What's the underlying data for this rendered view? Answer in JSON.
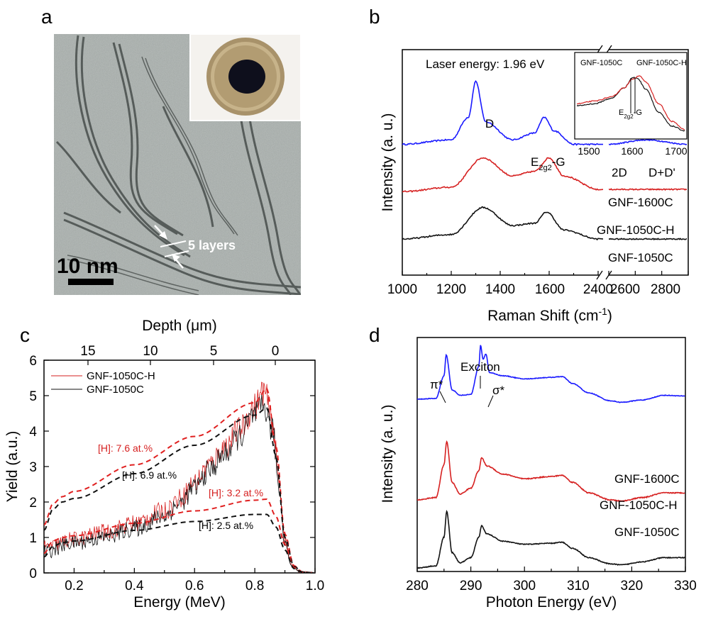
{
  "panels": {
    "a": {
      "label": "a",
      "scale_bar": "10 nm",
      "annotation": "5 layers"
    },
    "b": {
      "label": "b",
      "laser_energy": "Laser energy: 1.96 eV",
      "ylabel": "Intensity (a. u.)",
      "xlabel": "Raman Shift (cm⁻¹)",
      "xticks_left": [
        "1000",
        "1200",
        "1400",
        "1600",
        "2400"
      ],
      "xticks_right": [
        "2800"
      ],
      "xticks_right_extra": "2600",
      "peak_D": "D",
      "peak_G": "E2g2-G",
      "peak_2D": "2D",
      "peak_DD": "D+D'",
      "series": [
        "GNF-1600C",
        "GNF-1050C-H",
        "GNF-1050C"
      ],
      "inset": {
        "xticks": [
          "1500",
          "1600",
          "1700"
        ],
        "label_left": "GNF-1050C",
        "label_right": "GNF-1050C-H",
        "peak": "E2g2-G"
      }
    },
    "c": {
      "label": "c",
      "xlabel": "Energy (MeV)",
      "ylabel": "Yield (a.u.)",
      "top_label": "Depth (μm)",
      "top_ticks": [
        "15",
        "10",
        "5",
        "0"
      ],
      "legend": [
        "GNF-1050C-H",
        "GNF-1050C"
      ],
      "annotations": [
        "[H]: 7.6 at.%",
        "[H]: 6.9 at.%",
        "[H]: 3.2 at.%",
        "[H]: 2.5 at.%"
      ]
    },
    "d": {
      "label": "d",
      "xlabel": "Photon Energy (eV)",
      "ylabel": "Intensity (a. u.)",
      "peaks": [
        "π*",
        "Exciton",
        "σ*"
      ],
      "series": [
        "GNF-1600C",
        "GNF-1050C-H",
        "GNF-1050C"
      ]
    }
  },
  "colors": {
    "blue": "#1a1aff",
    "red": "#d62020",
    "black": "#111111",
    "dashed_red": "#e02020"
  },
  "chart_data": [
    {
      "panel": "b",
      "type": "line",
      "xlabel": "Raman Shift (cm-1)",
      "ylabel": "Intensity (a. u.)",
      "xlim": [
        1000,
        3000
      ],
      "axis_break": [
        2000,
        2400
      ],
      "series": [
        {
          "name": "GNF-1600C",
          "color": "#1a1aff",
          "x": [
            1000,
            1200,
            1270,
            1300,
            1340,
            1450,
            1540,
            1580,
            1620,
            1700,
            2000,
            2400,
            2680,
            3000
          ],
          "y": [
            0.58,
            0.6,
            0.7,
            0.86,
            0.68,
            0.6,
            0.63,
            0.7,
            0.64,
            0.58,
            0.58,
            0.58,
            0.6,
            0.58
          ]
        },
        {
          "name": "GNF-1050C-H",
          "color": "#d62020",
          "x": [
            1000,
            1200,
            1330,
            1450,
            1540,
            1600,
            1660,
            1800,
            2000,
            2400,
            3000
          ],
          "y": [
            0.37,
            0.39,
            0.52,
            0.44,
            0.46,
            0.52,
            0.44,
            0.38,
            0.38,
            0.38,
            0.38
          ]
        },
        {
          "name": "GNF-1050C",
          "color": "#111111",
          "x": [
            1000,
            1200,
            1330,
            1450,
            1540,
            1590,
            1660,
            1800,
            2000,
            2400,
            3000
          ],
          "y": [
            0.16,
            0.18,
            0.3,
            0.22,
            0.23,
            0.28,
            0.2,
            0.16,
            0.16,
            0.16,
            0.16
          ]
        }
      ],
      "annotations": [
        "Laser energy: 1.96 eV",
        "D",
        "E2g2-G",
        "2D",
        "D+D'"
      ]
    },
    {
      "panel": "b-inset",
      "type": "line",
      "xlim": [
        1460,
        1710
      ],
      "series": [
        {
          "name": "GNF-1050C",
          "color": "#111111",
          "x": [
            1460,
            1500,
            1540,
            1570,
            1590,
            1600,
            1620,
            1650,
            1680,
            1710
          ],
          "y": [
            0.45,
            0.48,
            0.56,
            0.72,
            0.87,
            0.86,
            0.7,
            0.35,
            0.15,
            0.08
          ]
        },
        {
          "name": "GNF-1050C-H",
          "color": "#d62020",
          "x": [
            1460,
            1500,
            1540,
            1570,
            1590,
            1605,
            1620,
            1650,
            1680,
            1710
          ],
          "y": [
            0.48,
            0.52,
            0.58,
            0.72,
            0.85,
            0.9,
            0.8,
            0.48,
            0.22,
            0.1
          ]
        }
      ]
    },
    {
      "panel": "c",
      "type": "line",
      "xlabel": "Energy (MeV)",
      "ylabel": "Yield (a.u.)",
      "xlim": [
        0.1,
        1.0
      ],
      "ylim": [
        0,
        6
      ],
      "xticks": [
        0.2,
        0.4,
        0.6,
        0.8,
        1.0
      ],
      "yticks": [
        0,
        1,
        2,
        3,
        4,
        5,
        6
      ],
      "top_axis": {
        "label": "Depth (μm)",
        "ticks": [
          15,
          10,
          5,
          0
        ]
      },
      "series": [
        {
          "name": "GNF-1050C-H",
          "color": "#d62020",
          "style": "noisy",
          "x": [
            0.1,
            0.2,
            0.3,
            0.4,
            0.5,
            0.55,
            0.6,
            0.65,
            0.7,
            0.75,
            0.8,
            0.83,
            0.86,
            0.88,
            0.9,
            0.92,
            0.95,
            1.0
          ],
          "y": [
            0.7,
            0.95,
            1.15,
            1.4,
            1.75,
            2.1,
            2.55,
            3.05,
            3.55,
            4.05,
            4.7,
            5.15,
            4.2,
            2.6,
            1.0,
            0.25,
            0.03,
            0.0
          ]
        },
        {
          "name": "GNF-1050C",
          "color": "#111111",
          "style": "noisy",
          "x": [
            0.1,
            0.2,
            0.3,
            0.4,
            0.5,
            0.55,
            0.6,
            0.65,
            0.7,
            0.75,
            0.8,
            0.83,
            0.86,
            0.88,
            0.9,
            0.92,
            0.95,
            1.0
          ],
          "y": [
            0.6,
            0.85,
            1.0,
            1.25,
            1.6,
            1.95,
            2.4,
            2.9,
            3.35,
            3.85,
            4.45,
            4.7,
            4.0,
            2.4,
            0.9,
            0.22,
            0.03,
            0.0
          ]
        },
        {
          "label": "[H]: 7.6 at.%",
          "color": "#e02020",
          "style": "dashed",
          "x": [
            0.1,
            0.13,
            0.16,
            0.2,
            0.4,
            0.6,
            0.8,
            0.84,
            0.87,
            0.9,
            0.93,
            0.96,
            1.0
          ],
          "y": [
            1.35,
            1.95,
            2.15,
            2.3,
            3.05,
            3.85,
            4.8,
            5.2,
            3.6,
            1.1,
            0.2,
            0.02,
            0.0
          ]
        },
        {
          "label": "[H]: 6.9 at.%",
          "color": "#111111",
          "style": "dashed",
          "x": [
            0.1,
            0.13,
            0.16,
            0.2,
            0.4,
            0.6,
            0.8,
            0.84,
            0.87,
            0.9,
            0.93,
            0.96,
            1.0
          ],
          "y": [
            1.2,
            1.8,
            2.0,
            2.1,
            2.8,
            3.6,
            4.45,
            4.65,
            3.3,
            1.0,
            0.18,
            0.02,
            0.0
          ]
        },
        {
          "label": "[H]: 3.2 at.%",
          "color": "#e02020",
          "style": "dashed",
          "x": [
            0.1,
            0.13,
            0.16,
            0.2,
            0.4,
            0.6,
            0.8,
            0.84,
            0.87,
            0.9,
            0.93,
            0.96,
            1.0
          ],
          "y": [
            0.55,
            0.9,
            1.0,
            1.05,
            1.4,
            1.75,
            2.05,
            2.08,
            1.6,
            0.8,
            0.15,
            0.02,
            0.0
          ]
        },
        {
          "label": "[H]: 2.5 at.%",
          "color": "#111111",
          "style": "dashed",
          "x": [
            0.1,
            0.13,
            0.16,
            0.2,
            0.4,
            0.6,
            0.8,
            0.84,
            0.87,
            0.9,
            0.93,
            0.96,
            1.0
          ],
          "y": [
            0.45,
            0.75,
            0.85,
            0.9,
            1.2,
            1.45,
            1.65,
            1.65,
            1.3,
            0.65,
            0.12,
            0.02,
            0.0
          ]
        }
      ],
      "legend": [
        "GNF-1050C-H",
        "GNF-1050C"
      ]
    },
    {
      "panel": "d",
      "type": "line",
      "xlabel": "Photon Energy (eV)",
      "ylabel": "Intensity (a. u.)",
      "xlim": [
        280,
        330
      ],
      "xticks": [
        280,
        290,
        300,
        310,
        320,
        330
      ],
      "series": [
        {
          "name": "GNF-1600C",
          "color": "#1a1aff",
          "x": [
            280,
            283.5,
            285.0,
            285.4,
            286.5,
            288,
            290,
            291.5,
            291.8,
            292.3,
            292.8,
            293.5,
            296,
            300,
            305,
            307,
            309,
            312,
            316,
            318,
            322,
            326,
            330
          ],
          "y": [
            0.0,
            0.01,
            0.3,
            0.57,
            0.12,
            0.05,
            0.06,
            0.42,
            0.69,
            0.51,
            0.58,
            0.34,
            0.3,
            0.26,
            0.28,
            0.29,
            0.2,
            0.08,
            -0.02,
            -0.04,
            -0.01,
            0.05,
            0.04
          ]
        },
        {
          "name": "GNF-1050C-H",
          "color": "#d62020",
          "x": [
            280,
            283.5,
            285.0,
            285.5,
            286.5,
            288,
            290,
            291.5,
            292.0,
            293,
            296,
            300,
            305,
            307,
            309,
            312,
            316,
            318,
            322,
            326,
            330
          ],
          "y": [
            0.0,
            0.02,
            0.3,
            0.5,
            0.15,
            0.05,
            0.1,
            0.25,
            0.36,
            0.29,
            0.22,
            0.18,
            0.2,
            0.21,
            0.15,
            0.06,
            0.0,
            -0.01,
            0.02,
            0.06,
            0.06
          ]
        },
        {
          "name": "GNF-1050C",
          "color": "#111111",
          "x": [
            280,
            283.5,
            285.0,
            285.5,
            286.5,
            288,
            290,
            291.5,
            292.0,
            293,
            296,
            300,
            305,
            307,
            309,
            312,
            316,
            318,
            322,
            326,
            330
          ],
          "y": [
            0.0,
            0.02,
            0.3,
            0.55,
            0.15,
            0.05,
            0.1,
            0.3,
            0.41,
            0.33,
            0.26,
            0.23,
            0.24,
            0.25,
            0.19,
            0.1,
            0.04,
            0.03,
            0.06,
            0.1,
            0.1
          ]
        }
      ],
      "annotations": [
        "π*",
        "Exciton",
        "σ*"
      ]
    }
  ]
}
